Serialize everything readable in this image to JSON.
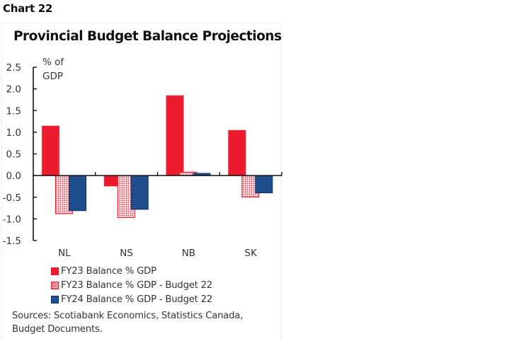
{
  "header": {
    "chart_number": "Chart 22"
  },
  "chart_data": {
    "type": "bar",
    "title": "Provincial Budget Balance Projections",
    "xlabel": "",
    "ylabel": "% of GDP",
    "ylabel_lines": [
      "% of",
      "GDP"
    ],
    "ylim": [
      -1.5,
      2.5
    ],
    "yticks": [
      2.5,
      2.0,
      1.5,
      1.0,
      0.5,
      0.0,
      -0.5,
      -1.0,
      -1.5
    ],
    "ytick_labels": [
      "2.5",
      "2.0",
      "1.5",
      "1.0",
      "0.5",
      "0.0",
      "-0.5",
      "-1.0",
      "-1.5"
    ],
    "grid": false,
    "legend_position": "bottom",
    "categories": [
      "NL",
      "NS",
      "NB",
      "SK"
    ],
    "series": [
      {
        "name": "FY23 Balance % GDP",
        "style": "solid",
        "color": "#ec1c2e",
        "values": [
          1.15,
          -0.25,
          1.85,
          1.05
        ]
      },
      {
        "name": "FY23 Balance % GDP - Budget 22",
        "style": "hatched",
        "color": "#ec1c2e",
        "values": [
          -0.88,
          -0.97,
          0.08,
          -0.5
        ]
      },
      {
        "name": "FY24 Balance % GDP - Budget 22",
        "style": "solid",
        "color": "#1f4e8c",
        "values": [
          -0.81,
          -0.78,
          0.05,
          -0.4
        ]
      }
    ]
  },
  "colors": {
    "red": "#ec1c2e",
    "blue": "#1f4e8c",
    "blue_border": "#0b2a6b",
    "hatch_bg": "#fbd4d7"
  },
  "footer": {
    "sources_line1": "Sources: Scotiabank Economics, Statistics Canada,",
    "sources_line2": "Budget Documents."
  }
}
